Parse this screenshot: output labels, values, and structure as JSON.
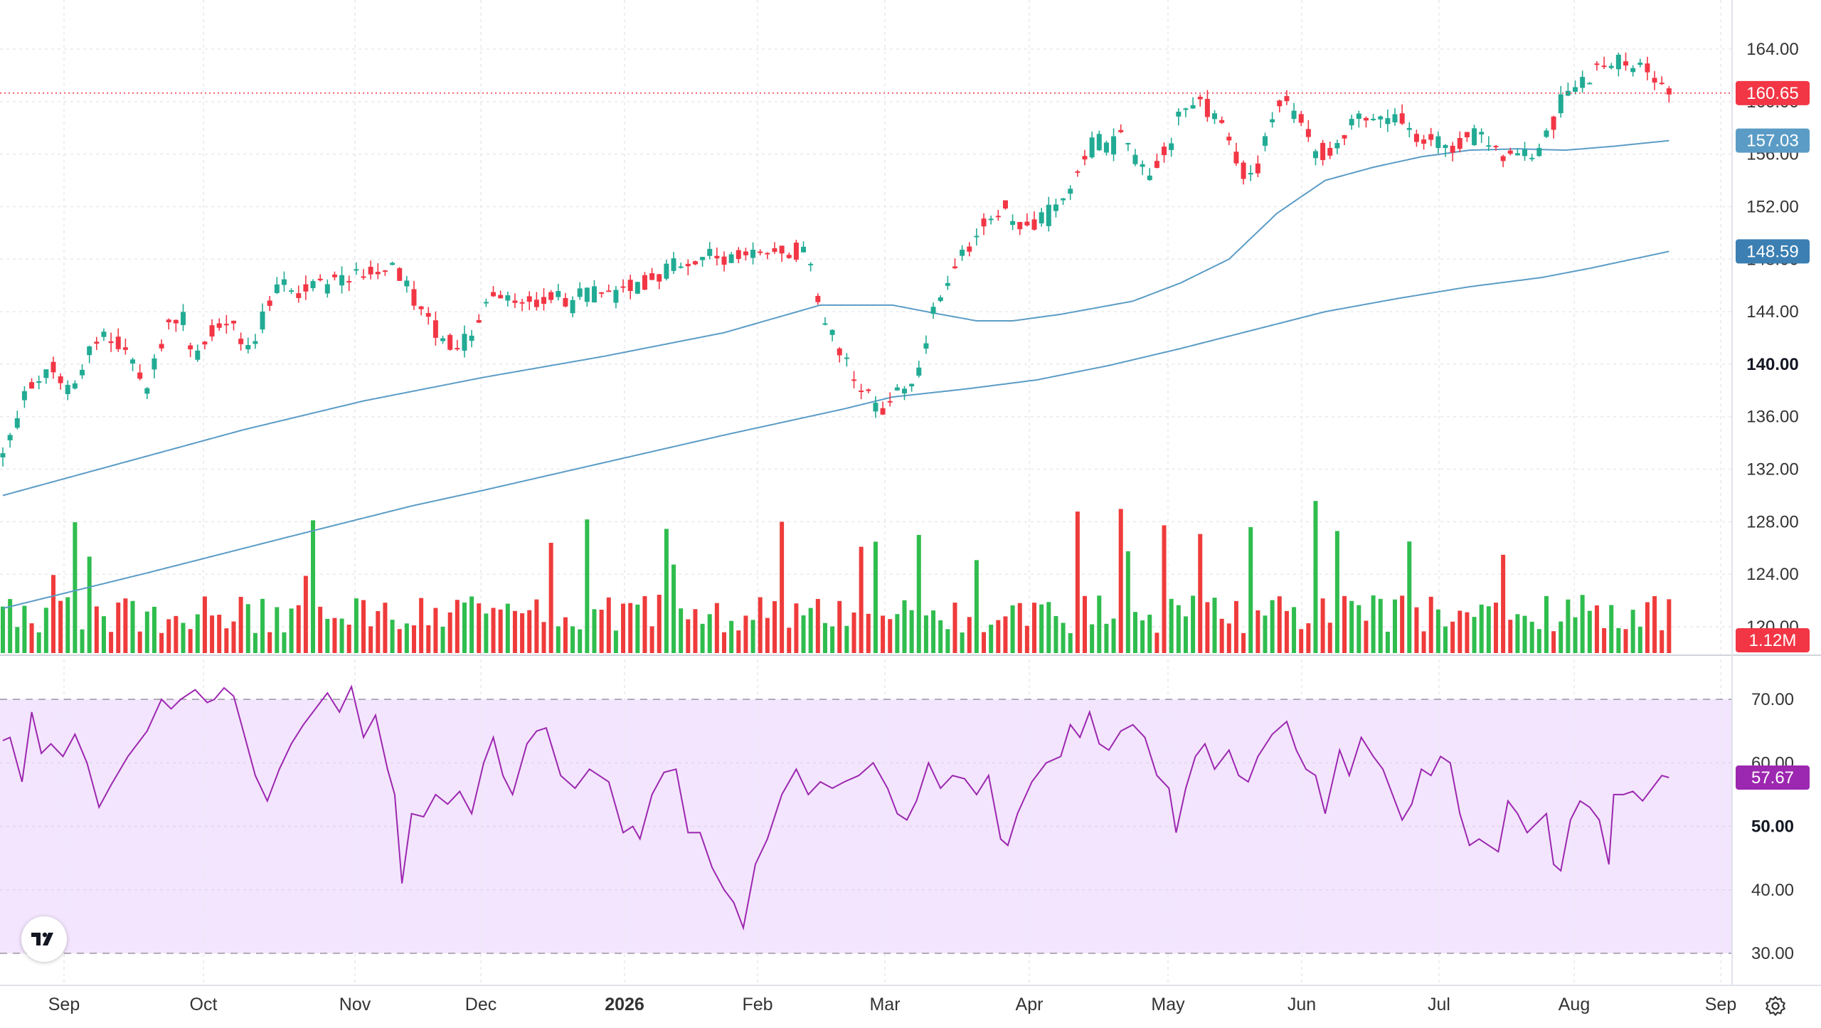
{
  "chart_data": {
    "type": "candlestick",
    "price_axis": {
      "ticks": [
        "164.00",
        "160.00",
        "156.00",
        "152.00",
        "148.00",
        "144.00",
        "140.00",
        "136.00",
        "132.00",
        "128.00",
        "124.00",
        "120.00"
      ],
      "range": [
        118.8,
        165.3
      ],
      "bold_tick": "140.00"
    },
    "rsi_axis": {
      "ticks": [
        "70.00",
        "60.00",
        "50.00",
        "40.00",
        "30.00"
      ],
      "range": [
        28.2,
        74.0
      ],
      "bold_tick": "50.00",
      "band": [
        30,
        70
      ]
    },
    "time_axis": {
      "labels": [
        "Sep",
        "Oct",
        "Nov",
        "Dec",
        "2026",
        "Feb",
        "Mar",
        "Apr",
        "May",
        "Jun",
        "Jul",
        "Aug",
        "Sep"
      ],
      "bold_label": "2026"
    },
    "last_price": {
      "value": 160.65,
      "label": "160.65",
      "color": "#f23645"
    },
    "ma_fast": {
      "last": 157.03,
      "label": "157.03",
      "color": "#5b9cc6"
    },
    "ma_slow": {
      "last": 148.59,
      "label": "148.59",
      "color": "#5b9cc6"
    },
    "volume_last": {
      "label": "1.12M",
      "color": "#f23645"
    },
    "rsi_last": {
      "value": 57.67,
      "label": "57.67",
      "color": "#9c27b0"
    },
    "colors": {
      "up": "#22ab94",
      "down": "#f23645",
      "volume_up": "#2fbd4e",
      "volume_down": "#ef3b3b",
      "rsi_line": "#9c27b0",
      "rsi_band": "#f3e5fd",
      "ma": "#5b9cc6",
      "grid": "#e9e9ee"
    },
    "price_path": [
      [
        0,
        133
      ],
      [
        10,
        138
      ],
      [
        20,
        139.3
      ],
      [
        28,
        138
      ],
      [
        35,
        140.5
      ],
      [
        42,
        142.3
      ],
      [
        55,
        139.9
      ],
      [
        60,
        138
      ],
      [
        68,
        142.9
      ],
      [
        75,
        143.5
      ],
      [
        80,
        140.3
      ],
      [
        85,
        142.6
      ],
      [
        95,
        143
      ],
      [
        100,
        141.2
      ],
      [
        105,
        141.8
      ],
      [
        112,
        145.4
      ],
      [
        118,
        146
      ],
      [
        125,
        145.4
      ],
      [
        130,
        146.2
      ],
      [
        137,
        146.2
      ],
      [
        145,
        146.6
      ],
      [
        150,
        147
      ],
      [
        155,
        147.3
      ],
      [
        160,
        147.4
      ],
      [
        165,
        147
      ],
      [
        170,
        145.4
      ],
      [
        175,
        144
      ],
      [
        180,
        142.5
      ],
      [
        185,
        141.8
      ],
      [
        190,
        141
      ],
      [
        196,
        143
      ],
      [
        200,
        144.2
      ],
      [
        203,
        145.2
      ],
      [
        210,
        145.2
      ],
      [
        220,
        144.8
      ],
      [
        230,
        145.4
      ],
      [
        235,
        143.6
      ],
      [
        240,
        145.2
      ],
      [
        245,
        145.5
      ],
      [
        250,
        145.8
      ],
      [
        255,
        145
      ],
      [
        260,
        146
      ],
      [
        270,
        146.5
      ],
      [
        280,
        147.5
      ],
      [
        290,
        148.4
      ],
      [
        300,
        148
      ],
      [
        310,
        148
      ],
      [
        320,
        148.8
      ],
      [
        330,
        148.5
      ],
      [
        335,
        148.3
      ],
      [
        338,
        145.5
      ],
      [
        340,
        143.5
      ],
      [
        345,
        142
      ],
      [
        350,
        140.5
      ],
      [
        355,
        139
      ],
      [
        360,
        137.5
      ],
      [
        365,
        136.5
      ],
      [
        370,
        137.5
      ],
      [
        375,
        138.5
      ],
      [
        380,
        139.5
      ],
      [
        383,
        141.5
      ],
      [
        386,
        143.5
      ],
      [
        390,
        145
      ],
      [
        395,
        147
      ],
      [
        400,
        148.5
      ],
      [
        405,
        150
      ],
      [
        410,
        151.5
      ],
      [
        415,
        152
      ],
      [
        420,
        150.5
      ],
      [
        425,
        151
      ],
      [
        430,
        150.5
      ],
      [
        435,
        151.5
      ],
      [
        440,
        152.5
      ],
      [
        445,
        154
      ],
      [
        450,
        156
      ],
      [
        455,
        157
      ],
      [
        460,
        156.5
      ],
      [
        465,
        157.5
      ],
      [
        470,
        155.5
      ],
      [
        475,
        154.5
      ],
      [
        480,
        155.5
      ],
      [
        485,
        157
      ],
      [
        490,
        159
      ],
      [
        495,
        160
      ],
      [
        500,
        159.5
      ],
      [
        505,
        158.5
      ],
      [
        510,
        156.5
      ],
      [
        515,
        154.5
      ],
      [
        520,
        154
      ],
      [
        525,
        157
      ],
      [
        530,
        160
      ],
      [
        535,
        159.5
      ],
      [
        540,
        159
      ],
      [
        545,
        156.5
      ],
      [
        550,
        156
      ],
      [
        555,
        157
      ],
      [
        560,
        158
      ],
      [
        565,
        158.5
      ],
      [
        570,
        159
      ],
      [
        575,
        158
      ],
      [
        580,
        158.5
      ],
      [
        585,
        157.5
      ],
      [
        590,
        156.5
      ],
      [
        595,
        157
      ],
      [
        600,
        156.5
      ],
      [
        605,
        157
      ],
      [
        610,
        157.5
      ],
      [
        615,
        157
      ],
      [
        620,
        156.5
      ],
      [
        625,
        156
      ],
      [
        630,
        156
      ],
      [
        635,
        155.5
      ],
      [
        640,
        156.5
      ],
      [
        645,
        158.5
      ],
      [
        648,
        160.5
      ],
      [
        650,
        161.2
      ],
      [
        655,
        161.6
      ],
      [
        660,
        162
      ],
      [
        665,
        162.5
      ],
      [
        670,
        163
      ],
      [
        675,
        163.2
      ],
      [
        680,
        162.8
      ],
      [
        685,
        162.3
      ],
      [
        690,
        160.8
      ],
      [
        693,
        160.65
      ]
    ],
    "ma_fast_path": [
      [
        0,
        130
      ],
      [
        50,
        132.5
      ],
      [
        100,
        135
      ],
      [
        150,
        137.2
      ],
      [
        200,
        139
      ],
      [
        250,
        140.6
      ],
      [
        300,
        142.4
      ],
      [
        340,
        144.5
      ],
      [
        370,
        144.5
      ],
      [
        390,
        143.8
      ],
      [
        405,
        143.3
      ],
      [
        420,
        143.3
      ],
      [
        440,
        143.8
      ],
      [
        470,
        144.8
      ],
      [
        490,
        146.2
      ],
      [
        510,
        148
      ],
      [
        530,
        151.5
      ],
      [
        550,
        154
      ],
      [
        570,
        155
      ],
      [
        590,
        155.8
      ],
      [
        610,
        156.3
      ],
      [
        630,
        156.4
      ],
      [
        650,
        156.3
      ],
      [
        670,
        156.6
      ],
      [
        693,
        157.03
      ]
    ],
    "ma_slow_path": [
      [
        0,
        121.4
      ],
      [
        60,
        124.1
      ],
      [
        120,
        126.9
      ],
      [
        170,
        129.2
      ],
      [
        200,
        130.4
      ],
      [
        250,
        132.5
      ],
      [
        300,
        134.6
      ],
      [
        350,
        136.6
      ],
      [
        370,
        137.5
      ],
      [
        400,
        138.1
      ],
      [
        430,
        138.8
      ],
      [
        460,
        139.9
      ],
      [
        490,
        141.2
      ],
      [
        520,
        142.6
      ],
      [
        550,
        144
      ],
      [
        580,
        145
      ],
      [
        610,
        145.9
      ],
      [
        640,
        146.6
      ],
      [
        660,
        147.3
      ],
      [
        693,
        148.59
      ]
    ],
    "rsi_path": [
      [
        0,
        63.5
      ],
      [
        3,
        64
      ],
      [
        8,
        57
      ],
      [
        12,
        68
      ],
      [
        16,
        61.5
      ],
      [
        20,
        63
      ],
      [
        25,
        61
      ],
      [
        30,
        64.5
      ],
      [
        35,
        60
      ],
      [
        40,
        53
      ],
      [
        45,
        56.5
      ],
      [
        52,
        61
      ],
      [
        60,
        65
      ],
      [
        66,
        70
      ],
      [
        70,
        68.5
      ],
      [
        74,
        70
      ],
      [
        80,
        71.5
      ],
      [
        85,
        69.5
      ],
      [
        88,
        70
      ],
      [
        92,
        71.8
      ],
      [
        96,
        70.5
      ],
      [
        100,
        65
      ],
      [
        105,
        58
      ],
      [
        110,
        54
      ],
      [
        115,
        59
      ],
      [
        120,
        63
      ],
      [
        125,
        66
      ],
      [
        130,
        68.5
      ],
      [
        135,
        71
      ],
      [
        140,
        68
      ],
      [
        145,
        72
      ],
      [
        150,
        64
      ],
      [
        155,
        67.5
      ],
      [
        160,
        59
      ],
      [
        163,
        55
      ],
      [
        166,
        41
      ],
      [
        170,
        52
      ],
      [
        175,
        51.5
      ],
      [
        180,
        55
      ],
      [
        185,
        53.5
      ],
      [
        190,
        55.5
      ],
      [
        195,
        52
      ],
      [
        200,
        60
      ],
      [
        204,
        64
      ],
      [
        208,
        58
      ],
      [
        212,
        55
      ],
      [
        218,
        63
      ],
      [
        222,
        65
      ],
      [
        226,
        65.5
      ],
      [
        232,
        58
      ],
      [
        238,
        56
      ],
      [
        244,
        59
      ],
      [
        248,
        58
      ],
      [
        252,
        57
      ],
      [
        255,
        53
      ],
      [
        258,
        49
      ],
      [
        262,
        50
      ],
      [
        265,
        48
      ],
      [
        270,
        55
      ],
      [
        275,
        58.5
      ],
      [
        280,
        59
      ],
      [
        285,
        49
      ],
      [
        290,
        49
      ],
      [
        295,
        43.5
      ],
      [
        300,
        40
      ],
      [
        304,
        38
      ],
      [
        308,
        34
      ],
      [
        313,
        44
      ],
      [
        318,
        48
      ],
      [
        324,
        55
      ],
      [
        330,
        59
      ],
      [
        335,
        55
      ],
      [
        340,
        57
      ],
      [
        345,
        56
      ],
      [
        350,
        57
      ],
      [
        356,
        58
      ],
      [
        362,
        60
      ],
      [
        368,
        56
      ],
      [
        372,
        52
      ],
      [
        376,
        51
      ],
      [
        380,
        54
      ],
      [
        385,
        60
      ],
      [
        390,
        56
      ],
      [
        395,
        58
      ],
      [
        400,
        57.5
      ],
      [
        405,
        55
      ],
      [
        410,
        58
      ],
      [
        415,
        48
      ],
      [
        418,
        47
      ],
      [
        422,
        52
      ],
      [
        428,
        57
      ],
      [
        434,
        60
      ],
      [
        440,
        61
      ],
      [
        444,
        66
      ],
      [
        448,
        64
      ],
      [
        452,
        68
      ],
      [
        456,
        63
      ],
      [
        460,
        62
      ],
      [
        465,
        65
      ],
      [
        470,
        66
      ],
      [
        475,
        64
      ],
      [
        480,
        58
      ],
      [
        485,
        56
      ],
      [
        488,
        49
      ],
      [
        492,
        56
      ],
      [
        496,
        61
      ],
      [
        500,
        63
      ],
      [
        504,
        59
      ],
      [
        510,
        62
      ],
      [
        514,
        58
      ],
      [
        518,
        57
      ],
      [
        522,
        61
      ],
      [
        528,
        64.5
      ],
      [
        534,
        66.5
      ],
      [
        538,
        62
      ],
      [
        542,
        59
      ],
      [
        546,
        58
      ],
      [
        550,
        52
      ],
      [
        556,
        62
      ],
      [
        560,
        58
      ],
      [
        565,
        64
      ],
      [
        570,
        61
      ],
      [
        574,
        59
      ],
      [
        578,
        55
      ],
      [
        582,
        51
      ],
      [
        586,
        53.5
      ],
      [
        590,
        59
      ],
      [
        594,
        58
      ],
      [
        598,
        61
      ],
      [
        602,
        60
      ],
      [
        606,
        52
      ],
      [
        610,
        47
      ],
      [
        614,
        48
      ],
      [
        618,
        47
      ],
      [
        622,
        46
      ],
      [
        626,
        54
      ],
      [
        630,
        52
      ],
      [
        634,
        49
      ],
      [
        638,
        50.5
      ],
      [
        642,
        52
      ],
      [
        645,
        44
      ],
      [
        648,
        43
      ],
      [
        652,
        51
      ],
      [
        656,
        54
      ],
      [
        660,
        53
      ],
      [
        664,
        51
      ],
      [
        668,
        44
      ],
      [
        670,
        55
      ],
      [
        674,
        55
      ],
      [
        678,
        55.5
      ],
      [
        682,
        54
      ],
      [
        686,
        56
      ],
      [
        690,
        58
      ],
      [
        693,
        57.67
      ]
    ]
  }
}
